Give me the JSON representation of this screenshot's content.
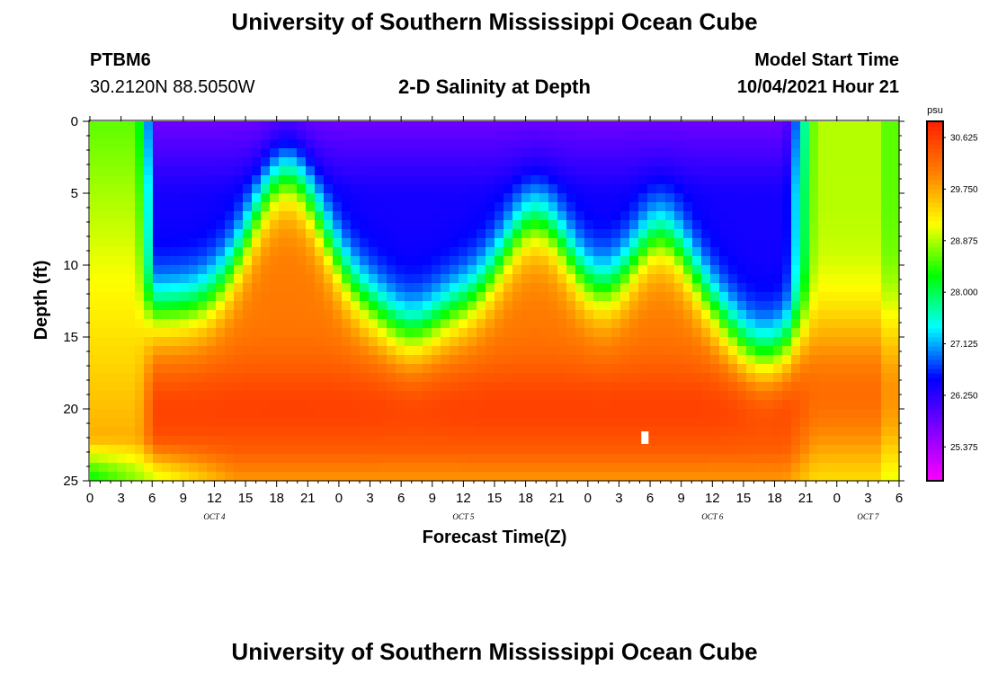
{
  "page": {
    "title": "University of Southern Mississippi Ocean Cube",
    "footer_title": "University of Southern Mississippi Ocean Cube",
    "station": "PTBM6",
    "coordinates": "30.2120N  88.5050W",
    "subtitle": "2-D Salinity at Depth",
    "model_label": "Model Start Time",
    "model_time": "10/04/2021 Hour 21"
  },
  "chart_data": {
    "type": "heatmap",
    "title": "2-D Salinity at Depth",
    "xlabel": "Forecast Time(Z)",
    "ylabel": "Depth (ft)",
    "x_unit": "hours since 10/04/2021 00Z",
    "xlim": [
      0,
      78
    ],
    "ylim": [
      0,
      25
    ],
    "y_inverted": true,
    "x_tick_labels": [
      "0",
      "3",
      "6",
      "9",
      "12",
      "15",
      "18",
      "21",
      "0",
      "3",
      "6",
      "9",
      "12",
      "15",
      "18",
      "21",
      "0",
      "3",
      "6",
      "9",
      "12",
      "15",
      "18",
      "21",
      "0",
      "3",
      "6"
    ],
    "day_labels": [
      {
        "label": "OCT 4",
        "hour": 12
      },
      {
        "label": "OCT 5",
        "hour": 36
      },
      {
        "label": "OCT 6",
        "hour": 60
      },
      {
        "label": "OCT 7",
        "hour": 75
      }
    ],
    "y_ticks": [
      0,
      5,
      10,
      15,
      20,
      25
    ],
    "colorbar": {
      "unit": "psu",
      "min": 24.8,
      "max": 30.9,
      "ticks": [
        "30.625",
        "29.750",
        "28.875",
        "28.000",
        "27.125",
        "26.250",
        "25.375"
      ],
      "colors": [
        "#ff00ff",
        "#8000ff",
        "#0000ff",
        "#00ffff",
        "#00ff00",
        "#ffff00",
        "#ff8000",
        "#ff2000"
      ]
    },
    "grid": false,
    "marker": {
      "hour": 53.5,
      "depth": 22.0,
      "color": "#ffffff"
    }
  }
}
